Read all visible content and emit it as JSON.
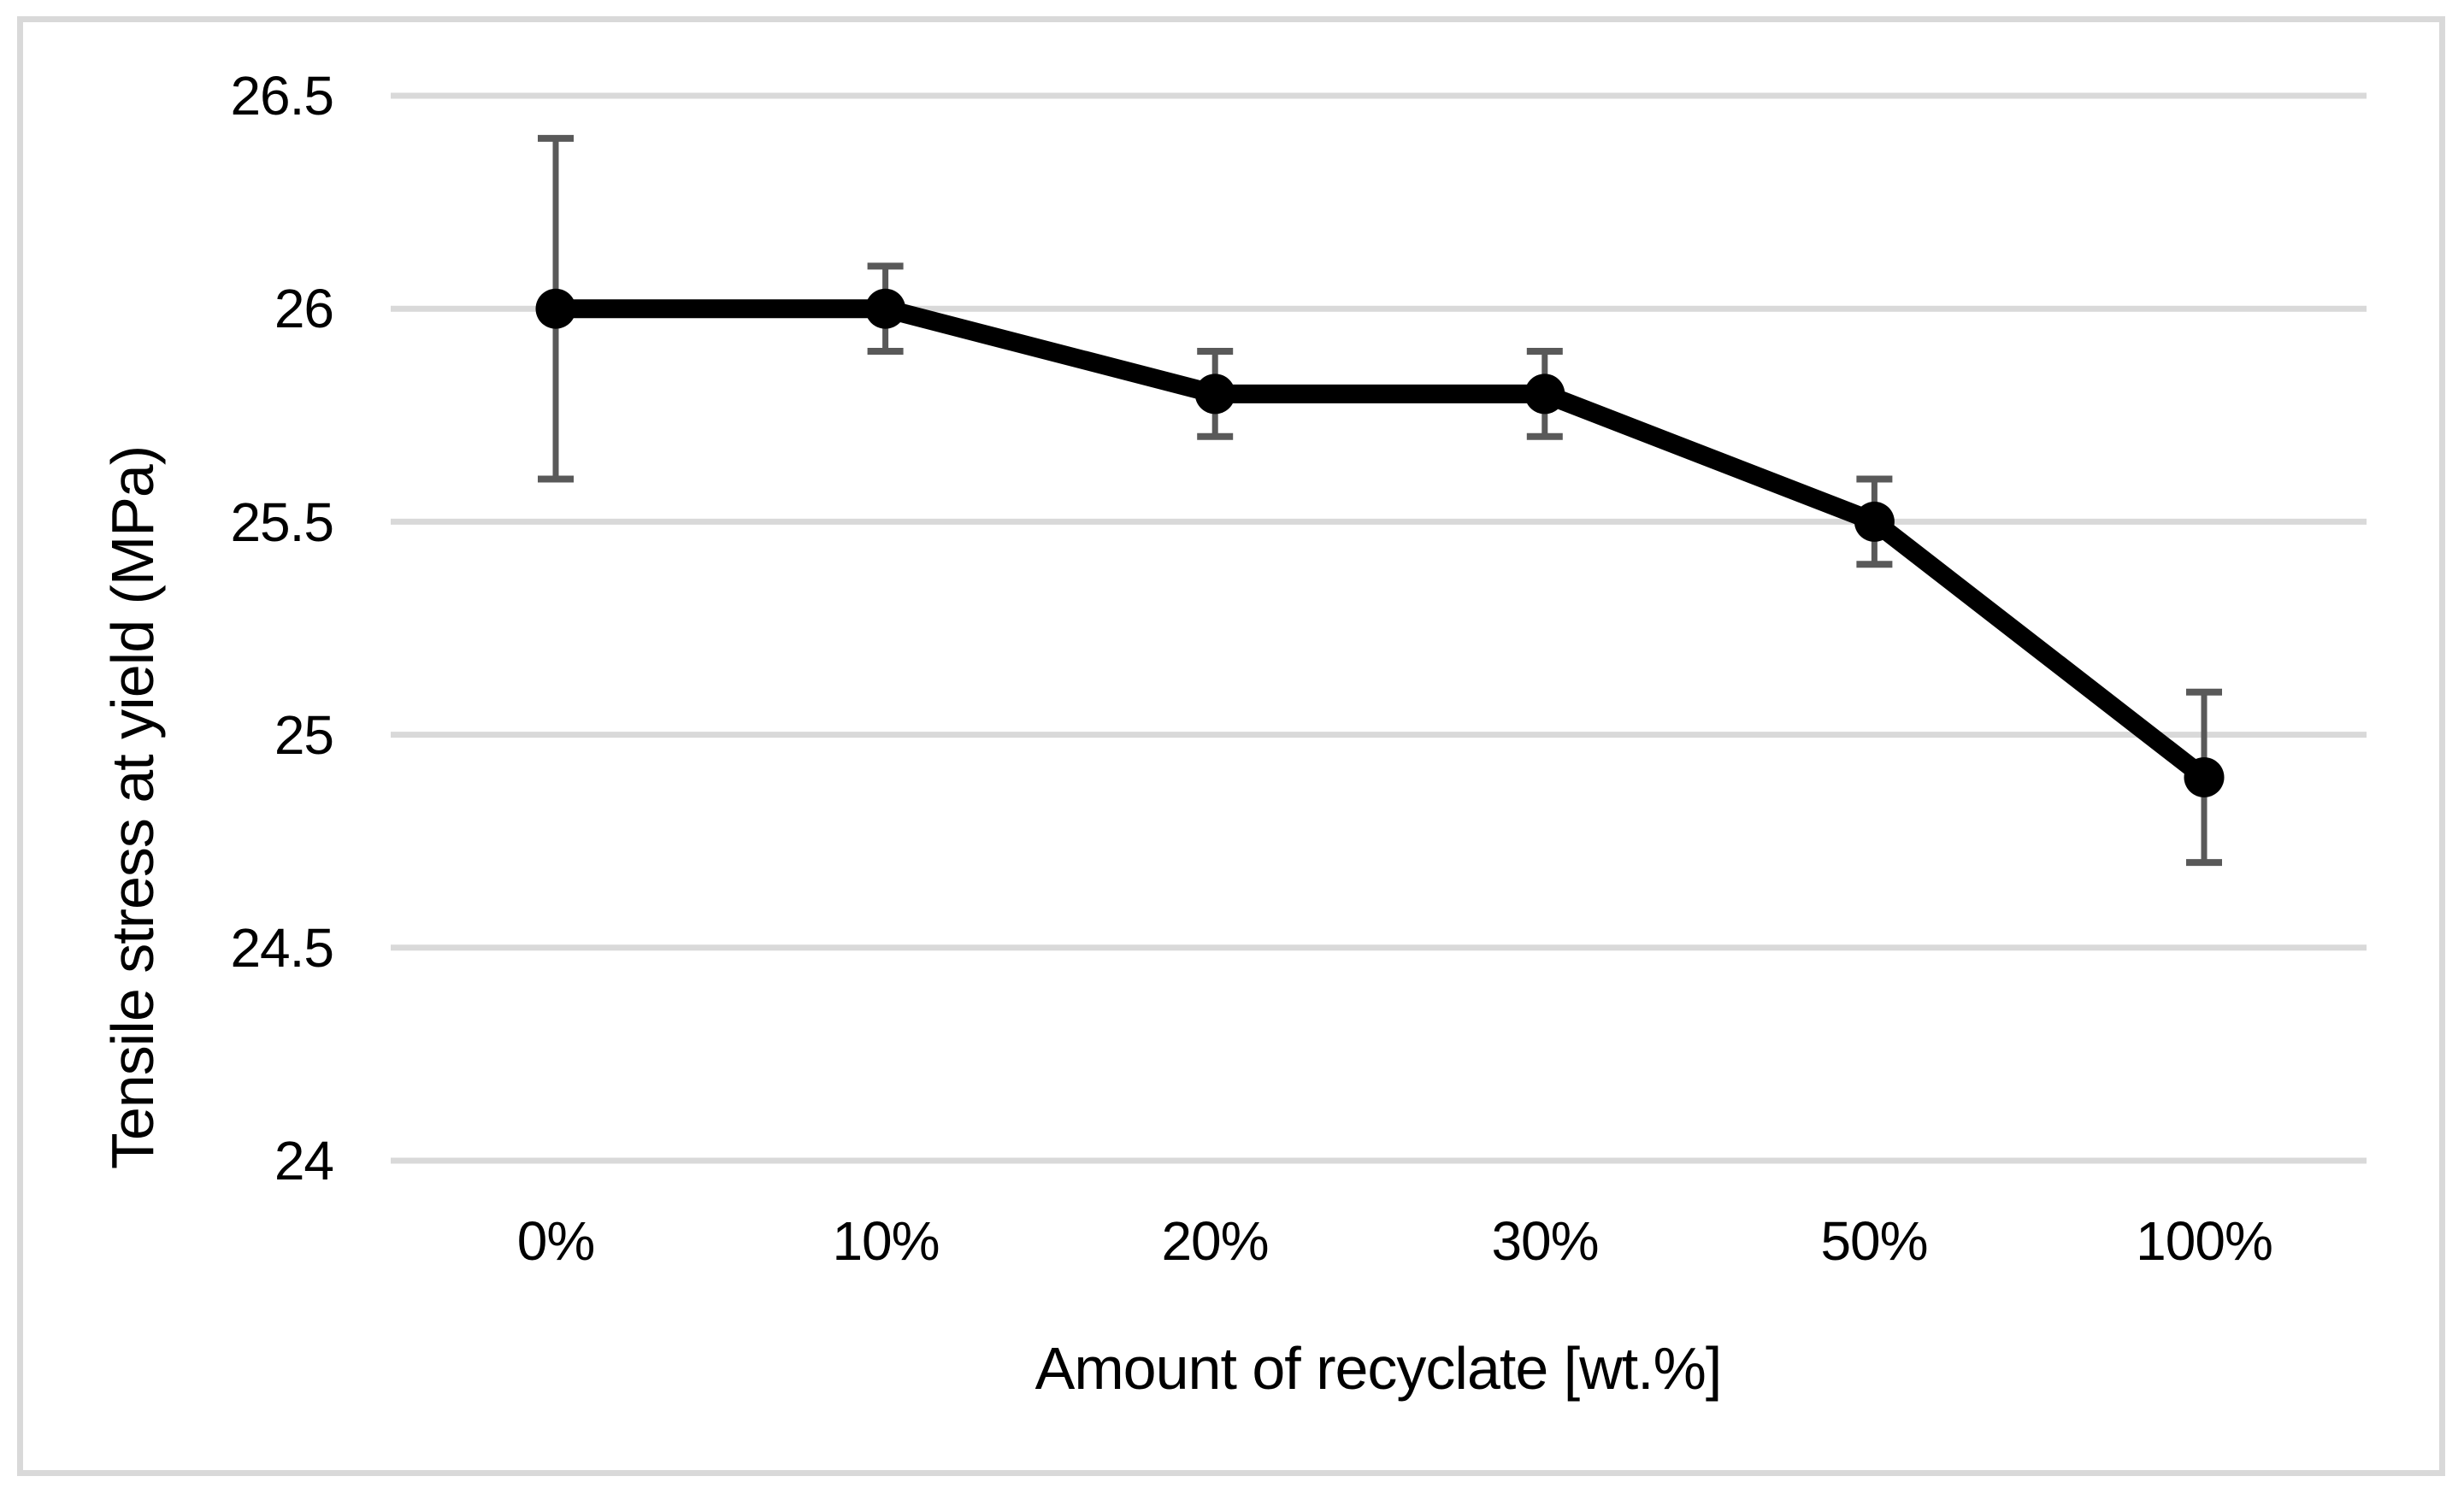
{
  "chart_data": {
    "type": "line",
    "title": "",
    "categories": [
      "0%",
      "10%",
      "20%",
      "30%",
      "50%",
      "100%"
    ],
    "series": [
      {
        "name": "Tensile stress at yield",
        "values": [
          26.0,
          26.0,
          25.8,
          25.8,
          25.5,
          24.9
        ],
        "error_plus": [
          0.4,
          0.1,
          0.1,
          0.1,
          0.1,
          0.2
        ],
        "error_minus": [
          0.4,
          0.1,
          0.1,
          0.1,
          0.1,
          0.2
        ]
      }
    ],
    "xlabel": "Amount of recyclate [wt.%]",
    "ylabel": "Tensile stress at yield (MPa)",
    "ylim": [
      24,
      26.5
    ],
    "ytick_step": 0.5,
    "ytick_labels": [
      "26.5",
      "26",
      "25.5",
      "25",
      "24.5",
      "24"
    ],
    "grid": "horizontal-only",
    "legend": "none",
    "marker": "filled-circle",
    "colors": {
      "line": "#000000",
      "marker": "#000000",
      "error_bar": "#595959",
      "gridline": "#d9d9d9",
      "frame_border": "#d9d9d9",
      "background": "#ffffff",
      "text": "#000000"
    }
  }
}
